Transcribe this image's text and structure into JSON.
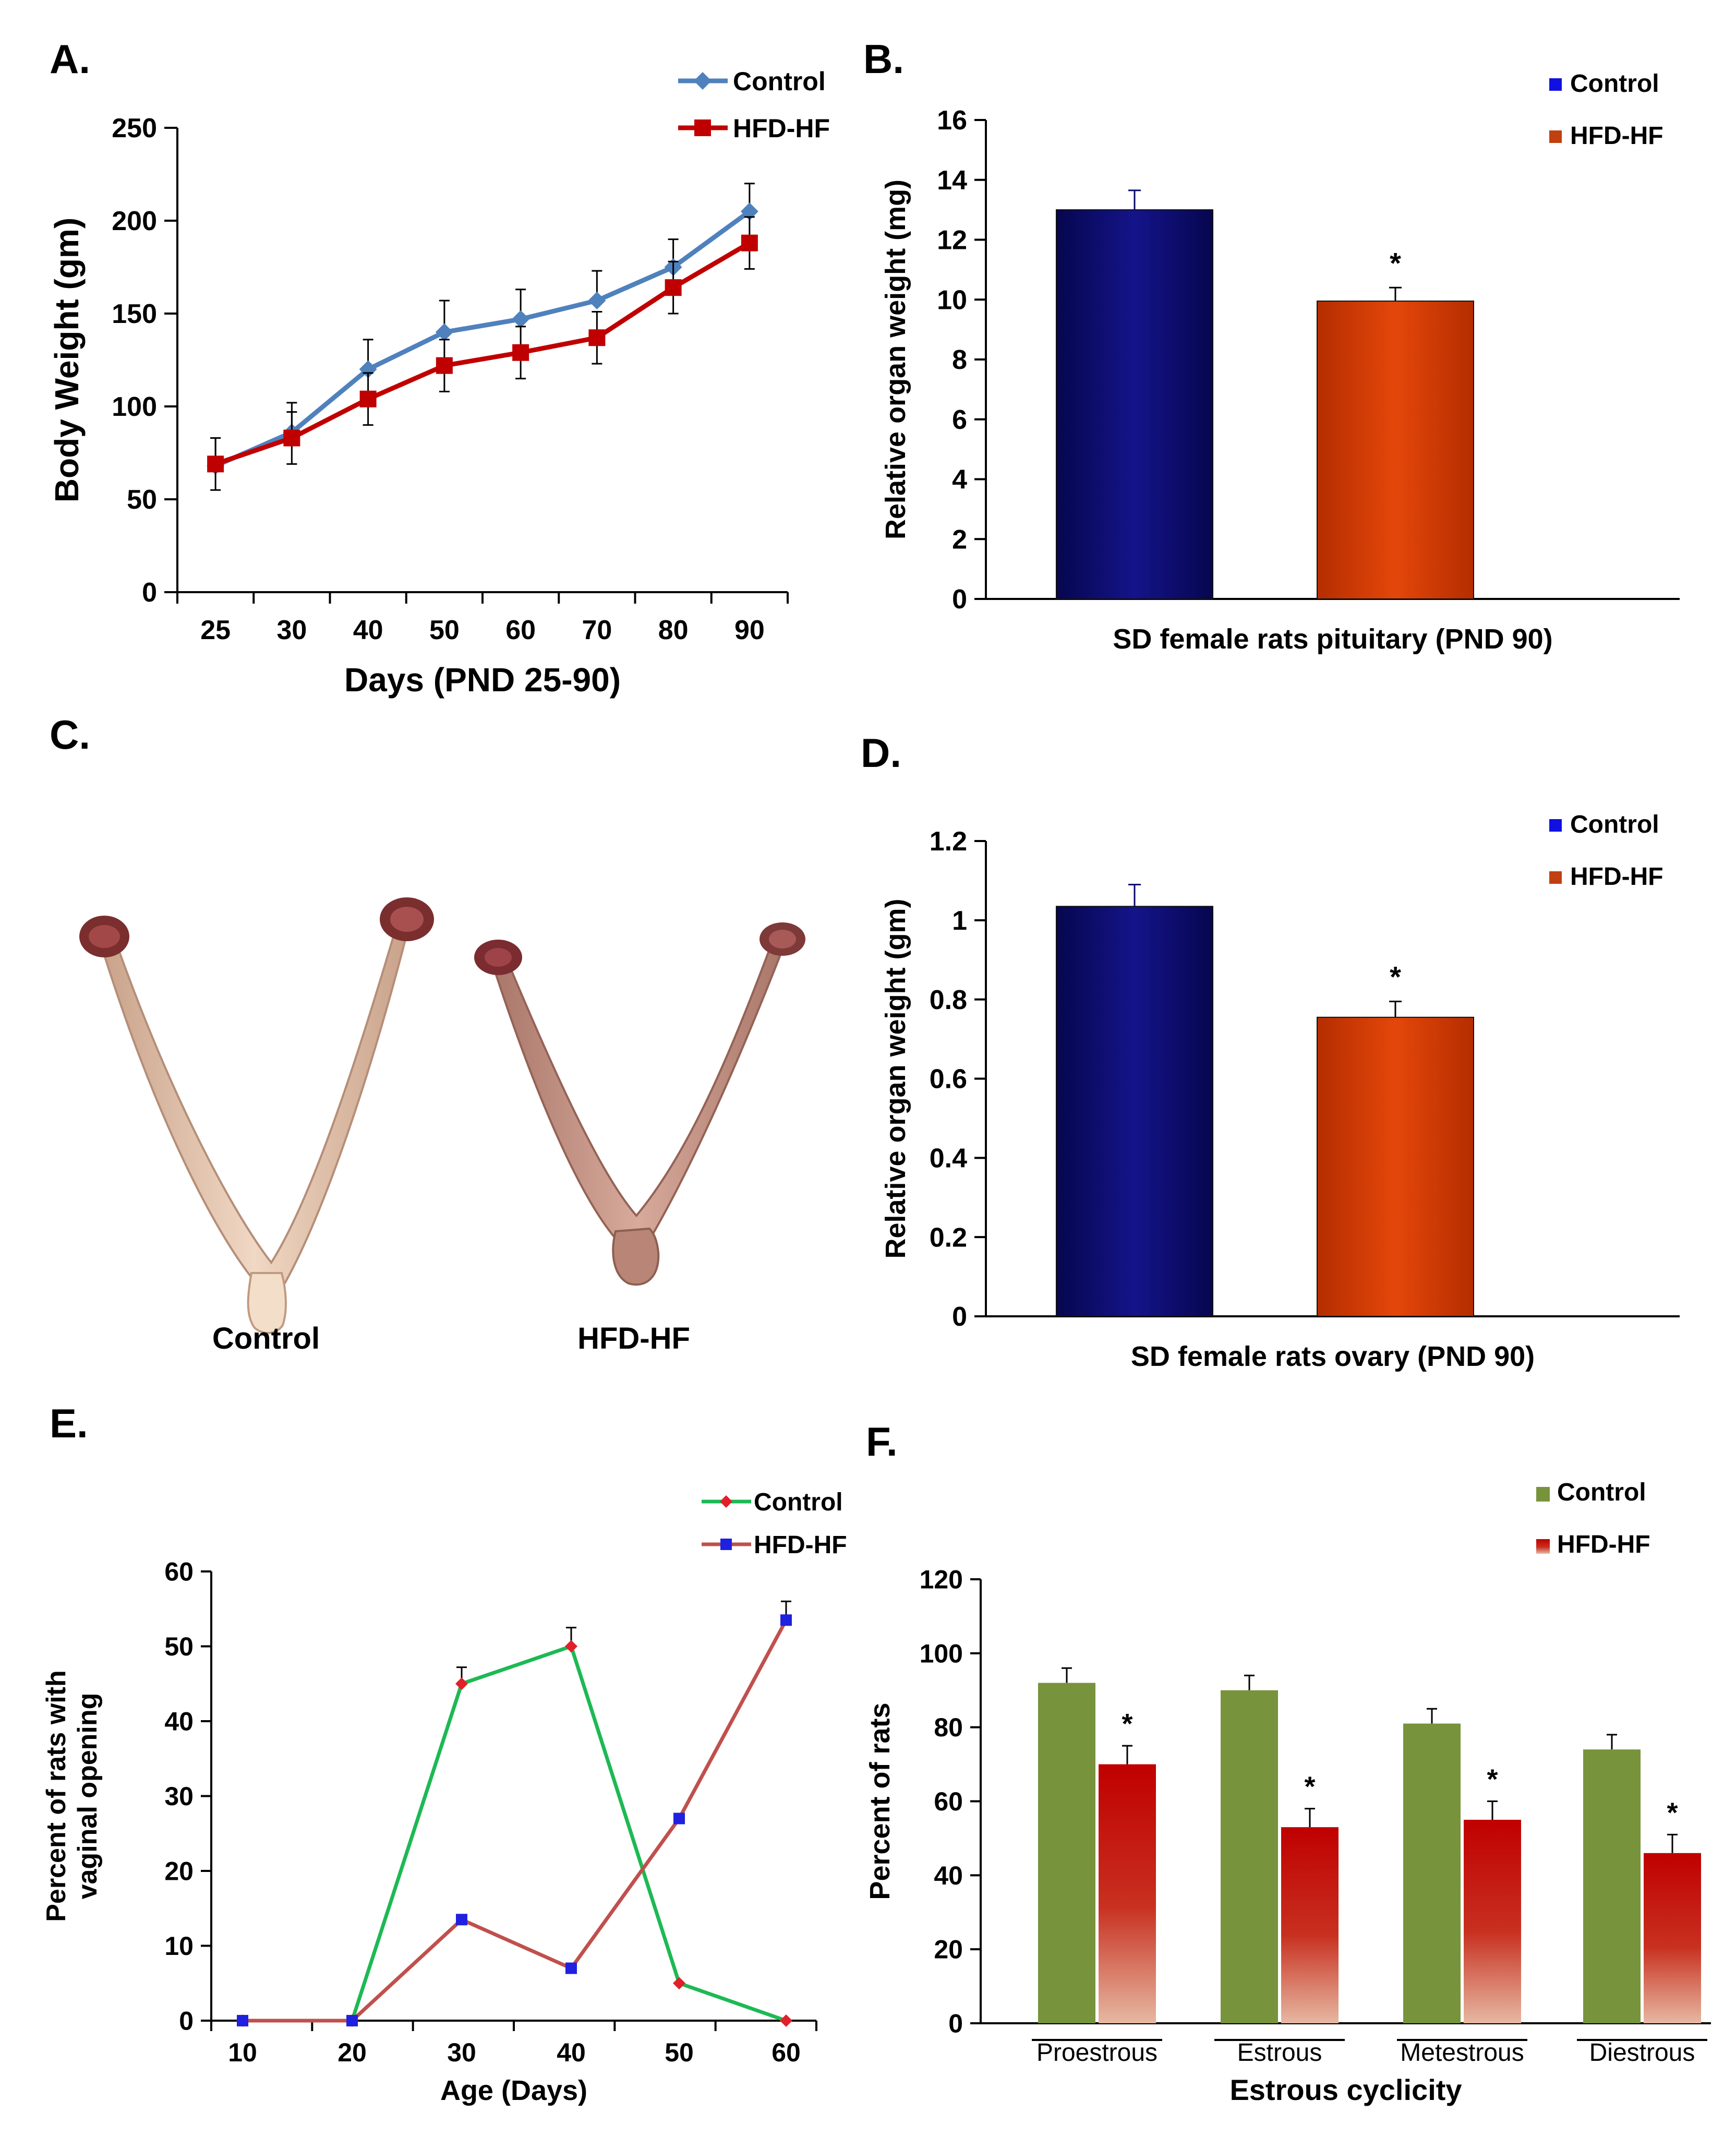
{
  "chart_data": [
    {
      "panel_label": "A.",
      "type": "line",
      "title": "",
      "xlabel": "Days (PND 25-90)",
      "ylabel": "Body Weight (gm)",
      "ylim": [
        0,
        250
      ],
      "yticks": [
        0,
        50,
        100,
        150,
        200,
        250
      ],
      "categories": [
        "25",
        "30",
        "40",
        "50",
        "60",
        "70",
        "80",
        "90"
      ],
      "legend_position": "top-right",
      "series": [
        {
          "name": "Control",
          "color": "#4F81BD",
          "marker": "diamond",
          "values": [
            68,
            86,
            120,
            140,
            147,
            157,
            175,
            205
          ],
          "errors": [
            15,
            16,
            16,
            17,
            16,
            16,
            15,
            15
          ]
        },
        {
          "name": "HFD-HF",
          "color": "#C00000",
          "marker": "square",
          "values": [
            69,
            83,
            104,
            122,
            129,
            137,
            164,
            188
          ],
          "errors": [
            14,
            14,
            14,
            14,
            14,
            14,
            14,
            14
          ]
        }
      ]
    },
    {
      "panel_label": "B.",
      "type": "bar",
      "title": "",
      "xlabel": "SD female rats pituitary (PND 90)",
      "ylabel": "Relative organ weight (mg)",
      "ylim": [
        0,
        16
      ],
      "yticks": [
        0,
        2,
        4,
        6,
        8,
        10,
        12,
        14,
        16
      ],
      "legend_position": "top-right",
      "series": [
        {
          "name": "Control",
          "color": "#0A0A6E",
          "values": [
            13.0
          ],
          "errors": [
            0.65
          ],
          "sig": ""
        },
        {
          "name": "HFD-HF",
          "color": "#D63A05",
          "values": [
            9.95
          ],
          "errors": [
            0.45
          ],
          "sig": "*"
        }
      ]
    },
    {
      "panel_label": "D.",
      "type": "bar",
      "title": "",
      "xlabel": "SD female rats ovary  (PND 90)",
      "ylabel": "Relative organ weight (gm)",
      "ylim": [
        0,
        1.2
      ],
      "yticks": [
        "0",
        "0.2",
        "0.4",
        "0.6",
        "0.8",
        "1",
        "1.2"
      ],
      "legend_position": "top-right",
      "series": [
        {
          "name": "Control",
          "color": "#0A0A6E",
          "values": [
            1.035
          ],
          "errors": [
            0.055
          ],
          "sig": ""
        },
        {
          "name": "HFD-HF",
          "color": "#D63A05",
          "values": [
            0.755
          ],
          "errors": [
            0.04
          ],
          "sig": "*"
        }
      ]
    },
    {
      "panel_label": "E.",
      "type": "line",
      "title": "",
      "xlabel": "Age (Days)",
      "ylabel_lines": [
        "Percent of rats with",
        "vaginal opening"
      ],
      "ylim": [
        0,
        60
      ],
      "yticks": [
        0,
        10,
        20,
        30,
        40,
        50,
        60
      ],
      "categories": [
        "10",
        "20",
        "30",
        "40",
        "50",
        "60"
      ],
      "legend_position": "top-right",
      "series": [
        {
          "name": "Control",
          "color": "#1DB954",
          "marker_color": "#E0202A",
          "marker": "diamond",
          "values": [
            0,
            0,
            45,
            50,
            5,
            0
          ],
          "errors": [
            0,
            0,
            2.2,
            2.5,
            0,
            0
          ]
        },
        {
          "name": "HFD-HF",
          "color": "#C0504D",
          "marker_color": "#2020E0",
          "marker": "square",
          "values": [
            0,
            0,
            13.5,
            7,
            27,
            53.5
          ],
          "errors": [
            0,
            0,
            0,
            0,
            0,
            2.5
          ]
        }
      ]
    },
    {
      "panel_label": "F.",
      "type": "bar",
      "title": "",
      "xlabel": "Estrous cyclicity",
      "ylabel": "Percent of rats",
      "ylim": [
        0,
        120
      ],
      "yticks": [
        0,
        20,
        40,
        60,
        80,
        100,
        120
      ],
      "categories": [
        "Proestrous",
        "Estrous",
        "Metestrous",
        "Diestrous"
      ],
      "legend_position": "top-right",
      "series": [
        {
          "name": "Control",
          "color": "#77933C",
          "values": [
            92,
            90,
            81,
            74
          ],
          "errors": [
            4,
            4,
            4,
            4
          ]
        },
        {
          "name": "HFD-HF",
          "color": "#C00000",
          "gradient_to": "#E8B4A0",
          "values": [
            70,
            53,
            55,
            46
          ],
          "errors": [
            5,
            5,
            5,
            5
          ],
          "sig": [
            "*",
            "*",
            "*",
            "*"
          ]
        }
      ]
    }
  ],
  "photo_panel": {
    "panel_label": "C.",
    "labels": [
      "Control",
      "HFD-HF"
    ]
  }
}
